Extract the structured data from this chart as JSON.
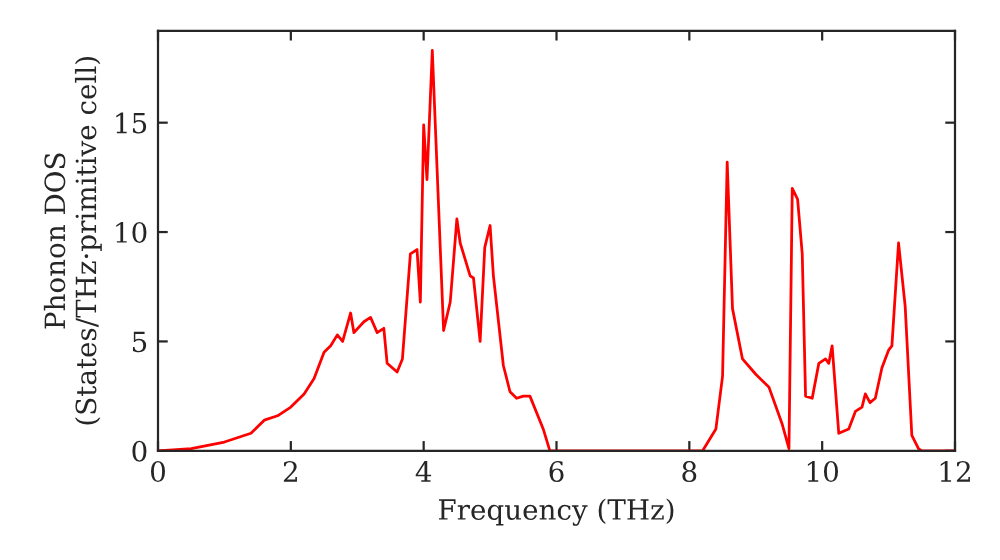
{
  "chart_data": {
    "type": "line",
    "xlabel": "Frequency (THz)",
    "ylabel": "Phonon DOS\n(States/THz·primitive cell)",
    "xlim": [
      0,
      12
    ],
    "ylim": [
      0,
      19.2
    ],
    "xticks": [
      0,
      2,
      4,
      6,
      8,
      10,
      12
    ],
    "yticks": [
      0,
      5,
      10,
      15
    ],
    "grid": false,
    "legend": false,
    "series": [
      {
        "color": "#ff0000",
        "x": [
          0,
          0.5,
          1.0,
          1.4,
          1.6,
          1.8,
          2.0,
          2.2,
          2.35,
          2.5,
          2.6,
          2.7,
          2.78,
          2.9,
          2.95,
          3.1,
          3.2,
          3.3,
          3.4,
          3.45,
          3.6,
          3.68,
          3.8,
          3.9,
          3.95,
          4.0,
          4.05,
          4.13,
          4.3,
          4.4,
          4.5,
          4.55,
          4.7,
          4.75,
          4.85,
          4.92,
          5.0,
          5.05,
          5.2,
          5.3,
          5.4,
          5.5,
          5.6,
          5.8,
          5.9,
          8.2,
          8.4,
          8.5,
          8.57,
          8.65,
          8.8,
          9.0,
          9.2,
          9.4,
          9.5,
          9.55,
          9.63,
          9.7,
          9.75,
          9.85,
          9.95,
          10.05,
          10.1,
          10.15,
          10.25,
          10.4,
          10.5,
          10.6,
          10.65,
          10.72,
          10.8,
          10.9,
          11.0,
          11.05,
          11.15,
          11.25,
          11.35,
          11.45,
          11.5,
          12.0
        ],
        "values": [
          0,
          0.1,
          0.4,
          0.8,
          1.4,
          1.6,
          2.0,
          2.6,
          3.3,
          4.5,
          4.8,
          5.3,
          5.0,
          6.3,
          5.4,
          5.9,
          6.1,
          5.4,
          5.6,
          4.0,
          3.6,
          4.2,
          9.0,
          9.2,
          6.8,
          14.9,
          12.4,
          18.3,
          5.5,
          6.8,
          10.6,
          9.5,
          8.0,
          7.9,
          5.0,
          9.3,
          10.3,
          8.0,
          3.9,
          2.7,
          2.4,
          2.5,
          2.5,
          1.0,
          0,
          0,
          1.0,
          3.4,
          13.2,
          6.5,
          4.2,
          3.5,
          2.9,
          1.2,
          0.1,
          12.0,
          11.5,
          9.0,
          2.5,
          2.4,
          4.0,
          4.2,
          4.0,
          4.8,
          0.8,
          1.0,
          1.8,
          2.0,
          2.6,
          2.2,
          2.4,
          3.8,
          4.6,
          4.8,
          9.5,
          6.6,
          0.7,
          0.1,
          0,
          0
        ]
      }
    ]
  }
}
